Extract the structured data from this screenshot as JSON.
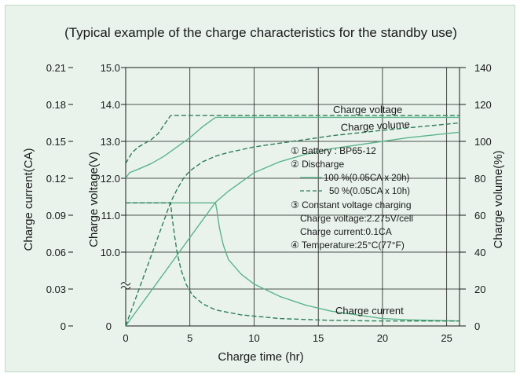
{
  "chart_data": {
    "type": "line",
    "title": "(Typical example of the charge characteristics for the standby use)",
    "xlabel": "Charge time  (hr)",
    "ylabel_left_outer": "Charge current(CA)",
    "ylabel_left_inner": "Charge voltage(V)",
    "ylabel_right": "Charge volume(%)",
    "xlim": [
      0,
      26
    ],
    "x_ticks": [
      "0",
      "5",
      "10",
      "15",
      "20",
      "25"
    ],
    "x_tick_values": [
      0,
      5,
      10,
      15,
      20,
      25
    ],
    "current_axis": {
      "range": [
        0,
        0.21
      ],
      "ticks": [
        "0",
        "0.03",
        "0.06",
        "0.09",
        "0.12",
        "0.15",
        "0.18",
        "0.21"
      ]
    },
    "voltage_axis": {
      "range": [
        8.0,
        15.0
      ],
      "ticks": [
        "10.0",
        "11.0",
        "12.0",
        "13.0",
        "14.0",
        "15.0"
      ],
      "tick_values": [
        10,
        11,
        12,
        13,
        14,
        15
      ],
      "zero_label": "0",
      "axis_break": true
    },
    "volume_axis": {
      "range": [
        0,
        140
      ],
      "ticks": [
        "0",
        "20",
        "40",
        "60",
        "80",
        "100",
        "120",
        "140"
      ]
    },
    "grid": true,
    "series": [
      {
        "name": "Charge voltage",
        "axis": "voltage",
        "style": "solid",
        "x": [
          0,
          0.3,
          1,
          2,
          3,
          4,
          5,
          6,
          7,
          26
        ],
        "y": [
          12.0,
          12.15,
          12.25,
          12.4,
          12.6,
          12.85,
          13.1,
          13.4,
          13.65,
          13.65
        ]
      },
      {
        "name": "",
        "axis": "voltage",
        "style": "dashed",
        "x": [
          0,
          0.5,
          1,
          2,
          2.5,
          3,
          3.5,
          26
        ],
        "y": [
          12.4,
          12.7,
          12.85,
          13.05,
          13.2,
          13.45,
          13.7,
          13.7
        ]
      },
      {
        "name": "Charge current",
        "axis": "current",
        "style": "solid",
        "x": [
          0,
          7,
          7.1,
          7.3,
          7.6,
          8,
          9,
          10,
          12,
          14,
          16,
          18,
          20,
          22,
          26
        ],
        "y": [
          0.1,
          0.1,
          0.094,
          0.08,
          0.066,
          0.054,
          0.042,
          0.034,
          0.024,
          0.017,
          0.012,
          0.009,
          0.006,
          0.005,
          0.004
        ]
      },
      {
        "name": "",
        "axis": "current",
        "style": "dashed",
        "x": [
          0,
          3.5,
          3.6,
          3.8,
          4,
          4.3,
          4.7,
          5.2,
          6,
          7,
          9,
          12,
          16,
          20,
          26
        ],
        "y": [
          0.1,
          0.1,
          0.09,
          0.074,
          0.06,
          0.046,
          0.034,
          0.025,
          0.018,
          0.013,
          0.009,
          0.006,
          0.0045,
          0.004,
          0.004
        ]
      },
      {
        "name": "Charge volume",
        "axis": "volume",
        "style": "solid",
        "x": [
          0,
          7,
          8,
          9,
          10,
          12,
          14,
          16,
          18,
          20,
          22,
          24,
          26
        ],
        "y": [
          0,
          67,
          73,
          78,
          83,
          89,
          93,
          96,
          98,
          100,
          102,
          103.5,
          105
        ]
      },
      {
        "name": "",
        "axis": "volume",
        "style": "dashed",
        "x": [
          0,
          3.5,
          4,
          4.5,
          5,
          6,
          7,
          8,
          10,
          12,
          14,
          16,
          20,
          26
        ],
        "y": [
          0,
          67,
          74,
          80,
          84,
          89,
          92,
          94,
          97,
          99,
          101,
          103,
          106,
          110
        ]
      }
    ],
    "series_labels": {
      "charge_voltage": "Charge voltage",
      "charge_volume": "Charge volume",
      "charge_current": "Charge current"
    },
    "annotations": {
      "battery": "① Battery : BP65-12",
      "discharge": "② Discharge",
      "legend_solid": "100 %(0.05CA x 20h)",
      "legend_dashed": "50 %(0.05CA x 10h)",
      "constant_voltage": "③ Constant voltage charging",
      "cv_voltage": "Charge voltage:2.275V/cell",
      "cv_current": "Charge current:0.1CA",
      "temperature": "④ Temperature:25°C(77°F)"
    },
    "colors": {
      "line": "#5bb489",
      "background": "#e9f3ec",
      "grid": "#1a1a1a"
    }
  }
}
